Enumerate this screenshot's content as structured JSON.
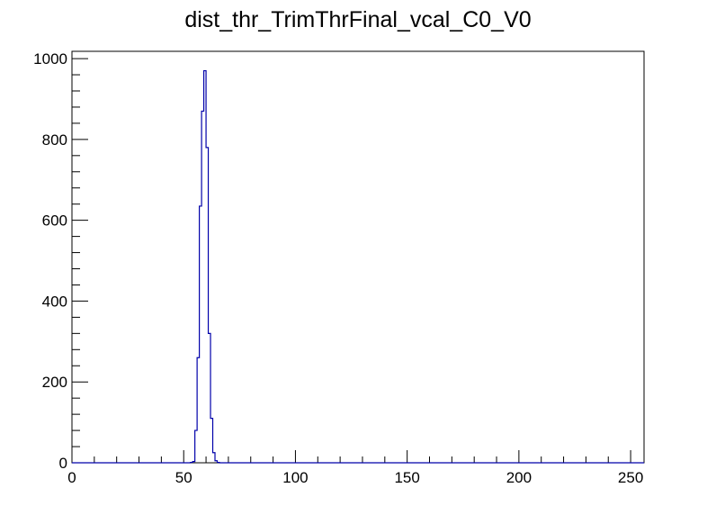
{
  "chart_data": {
    "type": "histogram",
    "title": "dist_thr_TrimThrFinal_vcal_C0_V0",
    "xlabel": "",
    "ylabel": "",
    "xlim": [
      0,
      256
    ],
    "ylim": [
      0,
      1018
    ],
    "bin_width": 1,
    "x_ticks": [
      0,
      50,
      100,
      150,
      200,
      250
    ],
    "y_ticks": [
      0,
      200,
      400,
      600,
      800,
      1000
    ],
    "grid": false,
    "line_color": "#0000aa",
    "bins": [
      {
        "x": 53,
        "value": 1
      },
      {
        "x": 54,
        "value": 3
      },
      {
        "x": 55,
        "value": 80
      },
      {
        "x": 56,
        "value": 260
      },
      {
        "x": 57,
        "value": 635
      },
      {
        "x": 58,
        "value": 870
      },
      {
        "x": 59,
        "value": 970
      },
      {
        "x": 60,
        "value": 780
      },
      {
        "x": 61,
        "value": 320
      },
      {
        "x": 62,
        "value": 110
      },
      {
        "x": 63,
        "value": 25
      },
      {
        "x": 64,
        "value": 5
      },
      {
        "x": 65,
        "value": 1
      }
    ]
  }
}
